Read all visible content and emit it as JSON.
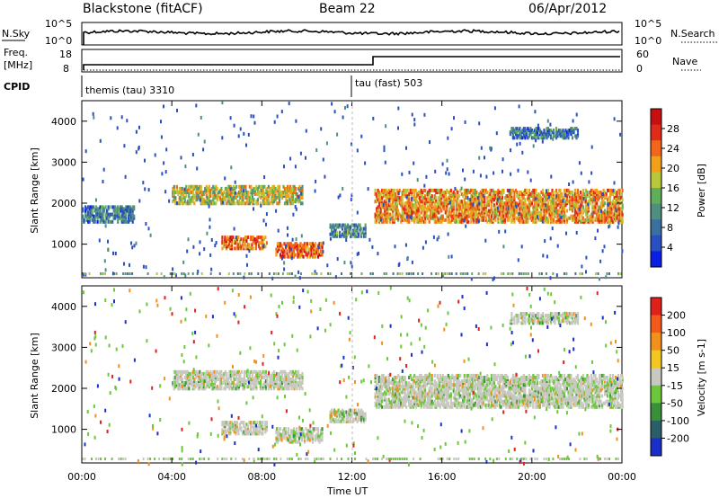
{
  "header": {
    "station": "Blackstone (fitACF)",
    "beam": "Beam 22",
    "date": "06/Apr/2012"
  },
  "status_panels": {
    "noise_left_label": "N.Sky",
    "noise_right_label": "N.Search",
    "noise_left_ticks": [
      "10^5",
      "10^0"
    ],
    "noise_right_ticks": [
      "10^5",
      "10^0"
    ],
    "freq_label_line1": "Freq.",
    "freq_label_line2": "[MHz]",
    "freq_ticks": [
      "18",
      "8"
    ],
    "nave_label": "Nave",
    "nave_ticks": [
      "60",
      "0"
    ],
    "cpid_label": "CPID",
    "cpid_segments": [
      {
        "label": "themis (tau) 3310",
        "start_hour": 0
      },
      {
        "label": "tau (fast) 503",
        "start_hour": 12.0
      }
    ]
  },
  "chart_data": [
    {
      "type": "heatmap",
      "name": "Power",
      "ylabel": "Slant Range [km]",
      "xlabel": "Time UT",
      "y_ticks": [
        "1000",
        "2000",
        "3000",
        "4000"
      ],
      "x_ticks": [
        "00:00",
        "04:00",
        "08:00",
        "12:00",
        "16:00",
        "20:00",
        "00:00"
      ],
      "xlim_hours": [
        0,
        24
      ],
      "ylim_km": [
        180,
        4500
      ],
      "colorbar_label": "Power [dB]",
      "colorbar_ticks": [
        "28",
        "24",
        "20",
        "16",
        "12",
        "8",
        "4"
      ],
      "colorbar_colors": [
        "#0a1ee6",
        "#2a4fc0",
        "#3b6fa0",
        "#4f8f80",
        "#5fae5a",
        "#b8c83a",
        "#f2a019",
        "#f2661a",
        "#e02a1a",
        "#c80f0f"
      ],
      "regions": [
        {
          "t0": 0.0,
          "t1": 2.3,
          "r0": 1500,
          "r1": 1900,
          "intensity": 0.25
        },
        {
          "t0": 4.0,
          "t1": 9.8,
          "r0": 1950,
          "r1": 2400,
          "intensity": 0.55
        },
        {
          "t0": 6.2,
          "t1": 8.2,
          "r0": 850,
          "r1": 1150,
          "intensity": 0.75
        },
        {
          "t0": 8.6,
          "t1": 10.7,
          "r0": 650,
          "r1": 1000,
          "intensity": 0.8
        },
        {
          "t0": 11.0,
          "t1": 12.6,
          "r0": 1150,
          "r1": 1450,
          "intensity": 0.3
        },
        {
          "t0": 13.0,
          "t1": 24.0,
          "r0": 1500,
          "r1": 2300,
          "intensity": 0.7
        },
        {
          "t0": 19.0,
          "t1": 22.0,
          "r0": 3550,
          "r1": 3800,
          "intensity": 0.25
        }
      ]
    },
    {
      "type": "heatmap",
      "name": "Velocity",
      "ylabel": "Slant Range [km]",
      "xlabel": "Time UT",
      "y_ticks": [
        "1000",
        "2000",
        "3000",
        "4000"
      ],
      "x_ticks": [
        "00:00",
        "04:00",
        "08:00",
        "12:00",
        "16:00",
        "20:00",
        "00:00"
      ],
      "xlim_hours": [
        0,
        24
      ],
      "ylim_km": [
        180,
        4500
      ],
      "colorbar_label": "Velocity [m s-1]",
      "colorbar_ticks": [
        "200",
        "100",
        "50",
        "15",
        "-15",
        "-50",
        "-100",
        "-200"
      ],
      "colorbar_colors": [
        "#1a2fc8",
        "#2a5f6a",
        "#3a8f3a",
        "#6ac83a",
        "#c8c8c0",
        "#f2c820",
        "#f2901a",
        "#f25a1a",
        "#e0201a"
      ],
      "regions": [
        {
          "t0": 4.0,
          "t1": 9.8,
          "r0": 1950,
          "r1": 2400,
          "intensity": 0.5
        },
        {
          "t0": 6.2,
          "t1": 8.2,
          "r0": 850,
          "r1": 1150,
          "intensity": 0.5
        },
        {
          "t0": 8.6,
          "t1": 10.7,
          "r0": 650,
          "r1": 1000,
          "intensity": 0.5
        },
        {
          "t0": 11.0,
          "t1": 12.6,
          "r0": 1150,
          "r1": 1450,
          "intensity": 0.5
        },
        {
          "t0": 13.0,
          "t1": 24.0,
          "r0": 1500,
          "r1": 2300,
          "intensity": 0.5
        },
        {
          "t0": 19.0,
          "t1": 22.0,
          "r0": 3550,
          "r1": 3800,
          "intensity": 0.5
        }
      ]
    }
  ]
}
